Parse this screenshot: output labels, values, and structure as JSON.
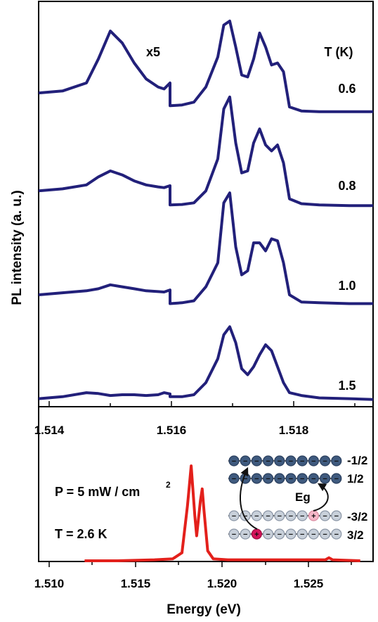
{
  "chart_data": [
    {
      "type": "line",
      "title": "",
      "xlabel": "",
      "ylabel": "PL intensity (a. u.)",
      "xlim": [
        1.5138,
        1.5194
      ],
      "x_ticks": [
        "1.514",
        "1.516",
        "1.518"
      ],
      "legend_title": "T (K)",
      "annotation": "x5",
      "stack_offset_ylim": [
        0,
        1
      ],
      "series": [
        {
          "name": "0.6",
          "color": "#22207a",
          "x": [
            1.5138,
            1.5142,
            1.5146,
            1.5148,
            1.515,
            1.5152,
            1.5154,
            1.5156,
            1.5158,
            1.5159,
            1.516,
            1.516,
            1.5162,
            1.5164,
            1.5166,
            1.5168,
            1.5169,
            1.517,
            1.5171,
            1.5172,
            1.5173,
            1.5174,
            1.5175,
            1.5176,
            1.5177,
            1.5178,
            1.5179,
            1.518,
            1.5182,
            1.5185,
            1.519,
            1.5194
          ],
          "y": [
            0.785,
            0.79,
            0.81,
            0.87,
            0.94,
            0.91,
            0.86,
            0.82,
            0.8,
            0.795,
            0.81,
            0.753,
            0.755,
            0.762,
            0.8,
            0.875,
            0.955,
            0.965,
            0.9,
            0.83,
            0.825,
            0.87,
            0.935,
            0.9,
            0.855,
            0.86,
            0.838,
            0.75,
            0.74,
            0.738,
            0.738,
            0.738
          ]
        },
        {
          "name": "0.8",
          "color": "#22207a",
          "x": [
            1.5138,
            1.5142,
            1.5146,
            1.5148,
            1.515,
            1.5152,
            1.5154,
            1.5156,
            1.5158,
            1.5159,
            1.516,
            1.516,
            1.5162,
            1.5164,
            1.5166,
            1.5168,
            1.5169,
            1.517,
            1.5171,
            1.5172,
            1.5173,
            1.5174,
            1.5175,
            1.5176,
            1.5177,
            1.5178,
            1.5179,
            1.518,
            1.5182,
            1.5185,
            1.519,
            1.5194
          ],
          "y": [
            0.54,
            0.545,
            0.555,
            0.575,
            0.59,
            0.58,
            0.565,
            0.555,
            0.55,
            0.548,
            0.553,
            0.505,
            0.506,
            0.51,
            0.54,
            0.62,
            0.745,
            0.775,
            0.66,
            0.585,
            0.59,
            0.66,
            0.695,
            0.655,
            0.64,
            0.655,
            0.61,
            0.52,
            0.508,
            0.505,
            0.503,
            0.503
          ]
        },
        {
          "name": "1.0",
          "color": "#22207a",
          "x": [
            1.5138,
            1.5142,
            1.5146,
            1.5148,
            1.515,
            1.5152,
            1.5154,
            1.5156,
            1.5158,
            1.5159,
            1.516,
            1.516,
            1.5162,
            1.5164,
            1.5166,
            1.5168,
            1.5169,
            1.517,
            1.5171,
            1.5172,
            1.5173,
            1.5174,
            1.5175,
            1.5176,
            1.5177,
            1.5178,
            1.5179,
            1.518,
            1.5182,
            1.5185,
            1.519,
            1.5194
          ],
          "y": [
            0.28,
            0.285,
            0.29,
            0.295,
            0.305,
            0.3,
            0.295,
            0.29,
            0.288,
            0.287,
            0.292,
            0.258,
            0.26,
            0.265,
            0.3,
            0.36,
            0.51,
            0.535,
            0.4,
            0.33,
            0.34,
            0.41,
            0.41,
            0.39,
            0.42,
            0.415,
            0.36,
            0.28,
            0.262,
            0.26,
            0.258,
            0.258
          ]
        },
        {
          "name": "1.5",
          "color": "#22207a",
          "x": [
            1.5138,
            1.5142,
            1.5146,
            1.5148,
            1.515,
            1.5152,
            1.5154,
            1.5156,
            1.5158,
            1.5159,
            1.516,
            1.516,
            1.5162,
            1.5164,
            1.5166,
            1.5168,
            1.5169,
            1.517,
            1.5171,
            1.5172,
            1.5173,
            1.5174,
            1.5175,
            1.5176,
            1.5177,
            1.5178,
            1.5179,
            1.518,
            1.5182,
            1.5185,
            1.519,
            1.5194
          ],
          "y": [
            0.02,
            0.025,
            0.035,
            0.033,
            0.028,
            0.03,
            0.03,
            0.028,
            0.03,
            0.035,
            0.032,
            0.025,
            0.025,
            0.03,
            0.06,
            0.12,
            0.18,
            0.2,
            0.16,
            0.095,
            0.08,
            0.1,
            0.13,
            0.155,
            0.14,
            0.1,
            0.06,
            0.035,
            0.028,
            0.022,
            0.02,
            0.018
          ]
        }
      ]
    },
    {
      "type": "line",
      "title": "",
      "xlabel": "Energy (eV)",
      "ylabel": "",
      "xlim": [
        1.5087,
        1.5269
      ],
      "x_ticks": [
        "1.510",
        "1.515",
        "1.520",
        "1.525"
      ],
      "annotations": [
        "P = 5 mW / cm",
        "2",
        "T = 2.6 K"
      ],
      "series": [
        {
          "name": "",
          "color": "#e3201b",
          "x": [
            1.5112,
            1.513,
            1.515,
            1.516,
            1.5165,
            1.5168,
            1.517,
            1.5172,
            1.5173,
            1.5175,
            1.5176,
            1.5177,
            1.5179,
            1.5182,
            1.519,
            1.52,
            1.523,
            1.5243,
            1.5245,
            1.5247,
            1.5262
          ],
          "y": [
            0.0,
            0.0,
            0.01,
            0.02,
            0.08,
            0.55,
            0.95,
            0.45,
            0.25,
            0.6,
            0.72,
            0.5,
            0.1,
            0.02,
            0.01,
            0.01,
            0.01,
            0.01,
            0.03,
            0.01,
            0.0
          ]
        }
      ]
    }
  ],
  "inset": {
    "levels": [
      "-1/2",
      "1/2",
      "-3/2",
      "3/2"
    ],
    "gap_label": "Eg",
    "electron_sign": "−",
    "hole_sign": "+"
  }
}
